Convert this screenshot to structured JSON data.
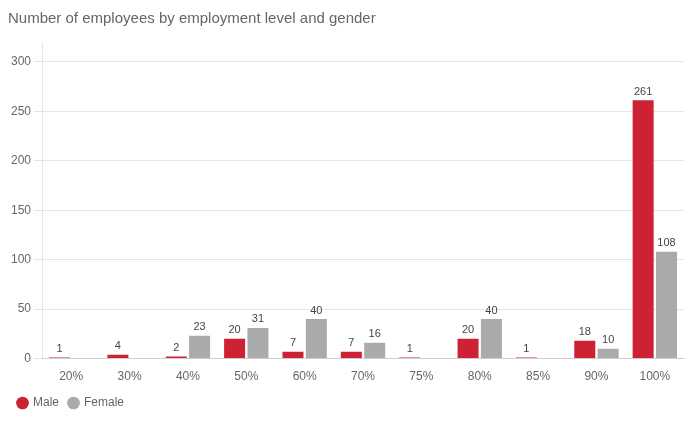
{
  "chart_data": {
    "type": "bar",
    "title": "Number of employees by employment level and gender",
    "categories": [
      "20%",
      "30%",
      "40%",
      "50%",
      "60%",
      "70%",
      "75%",
      "80%",
      "85%",
      "90%",
      "100%"
    ],
    "series": [
      {
        "name": "Male",
        "color": "#cc2233",
        "values": [
          1,
          4,
          2,
          20,
          7,
          7,
          1,
          20,
          1,
          18,
          261
        ],
        "value_labels": [
          "1",
          "4",
          "2",
          "20",
          "7",
          "7",
          "1",
          "20",
          "1",
          "18",
          "261"
        ]
      },
      {
        "name": "Female",
        "color": "#aaaaaa",
        "values": [
          0,
          0,
          23,
          31,
          40,
          16,
          0,
          40,
          0,
          10,
          108
        ],
        "value_labels": [
          null,
          null,
          "23",
          "31",
          "40",
          "16",
          null,
          "40",
          null,
          "10",
          "108"
        ]
      }
    ],
    "ylim": [
      0,
      320
    ],
    "yticks": [
      0,
      50,
      100,
      150,
      200,
      250,
      300
    ],
    "grid": true,
    "legend": "bottom",
    "data_labels": true
  }
}
